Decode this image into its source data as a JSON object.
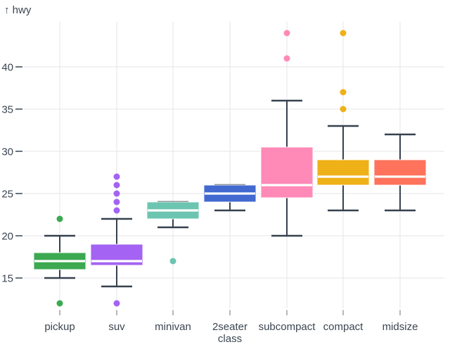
{
  "chart_data": {
    "type": "boxplot",
    "title": "",
    "ylabel_display": "↑ hwy",
    "ylabel": "hwy",
    "xlabel": "class",
    "y_ticks": [
      15,
      20,
      25,
      30,
      35,
      40
    ],
    "y_domain": [
      11,
      45
    ],
    "grid": true,
    "legend": false,
    "categories": [
      "pickup",
      "suv",
      "minivan",
      "2seater",
      "subcompact",
      "compact",
      "midsize"
    ],
    "series": [
      {
        "class": "pickup",
        "color": "#3ca951",
        "whisker_low": 15,
        "q1": 16,
        "median": 17,
        "q3": 18,
        "whisker_high": 20,
        "outliers": [
          22,
          12
        ]
      },
      {
        "class": "suv",
        "color": "#a463f2",
        "whisker_low": 14,
        "q1": 16.5,
        "median": 17,
        "q3": 19,
        "whisker_high": 22,
        "outliers": [
          27,
          26,
          25,
          24,
          23,
          12
        ]
      },
      {
        "class": "minivan",
        "color": "#6cc5b0",
        "whisker_low": 21,
        "q1": 22,
        "median": 23,
        "q3": 24,
        "whisker_high": 24,
        "outliers": [
          17
        ]
      },
      {
        "class": "2seater",
        "color": "#4269d0",
        "whisker_low": 23,
        "q1": 24,
        "median": 25,
        "q3": 26,
        "whisker_high": 26,
        "outliers": []
      },
      {
        "class": "subcompact",
        "color": "#ff8ab7",
        "whisker_low": 20,
        "q1": 24.5,
        "median": 26,
        "q3": 30.5,
        "whisker_high": 36,
        "outliers": [
          44,
          41
        ]
      },
      {
        "class": "compact",
        "color": "#efb118",
        "whisker_low": 23,
        "q1": 26,
        "median": 27,
        "q3": 29,
        "whisker_high": 33,
        "outliers": [
          44,
          37,
          35
        ]
      },
      {
        "class": "midsize",
        "color": "#ff725c",
        "whisker_low": 23,
        "q1": 26,
        "median": 27,
        "q3": 29,
        "whisker_high": 32,
        "outliers": []
      }
    ]
  },
  "colors": {
    "text": "#3b4551",
    "grid": "#e4e6ea",
    "whisker": "#36414e",
    "axis_tick": "#69727d",
    "median": "#ffffff",
    "background": "#ffffff"
  }
}
